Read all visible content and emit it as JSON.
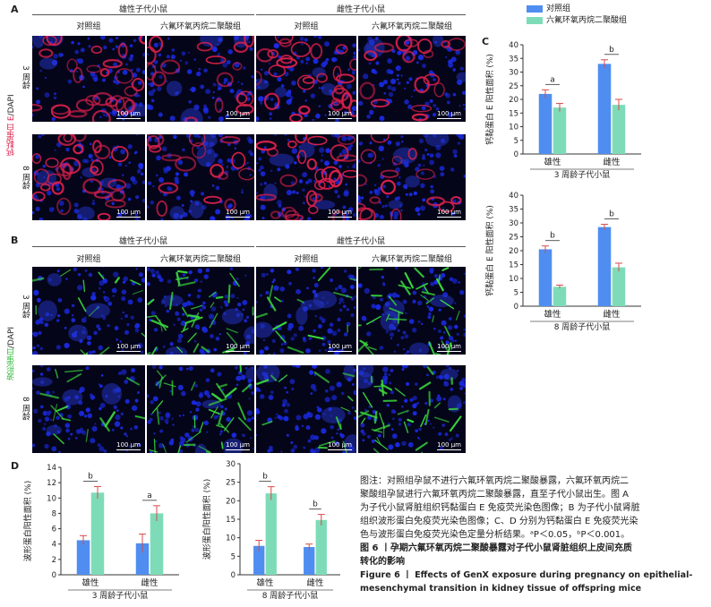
{
  "panels": {
    "A": "A",
    "B": "B",
    "C": "C",
    "D": "D"
  },
  "headers": {
    "male": "雄性子代小鼠",
    "female": "雌性子代小鼠",
    "control": "对照组",
    "genx": "六氟环氧丙烷二聚酸组"
  },
  "rows": {
    "w3": "3 周龄",
    "w8": "8 周龄"
  },
  "row_group_labels": {
    "A_marker": "钙黏蛋白 E",
    "A_dapi": "/DAPI",
    "B_marker": "波形蛋白",
    "B_dapi": "/DAPI"
  },
  "scale_bar": "100 μm",
  "colors": {
    "control": "#4f8ef0",
    "genx": "#7ddcb7",
    "error": "#d94848",
    "red_stain": "#d8204a",
    "green_stain": "#3bdc3c",
    "dapi": "#1a2ae0"
  },
  "legend": {
    "control": "对照组",
    "genx": "六氟环氧丙烷二聚酸组"
  },
  "chart_data": [
    {
      "id": "C-top",
      "type": "bar",
      "ylabel": "钙黏蛋白 E 阳性面积 (%)",
      "xlabel": "3 周龄子代小鼠",
      "categories": [
        "雄性",
        "雌性"
      ],
      "ylim": [
        0,
        40
      ],
      "yticks": [
        0,
        5,
        10,
        15,
        20,
        25,
        30,
        35,
        40
      ],
      "series": [
        {
          "name": "对照组",
          "values": [
            22,
            33
          ],
          "errors": [
            1.5,
            1.5
          ]
        },
        {
          "name": "六氟环氧丙烷二聚酸组",
          "values": [
            17,
            18
          ],
          "errors": [
            1.5,
            2
          ]
        }
      ],
      "annotations": [
        "a",
        "b"
      ]
    },
    {
      "id": "C-bottom",
      "type": "bar",
      "ylabel": "钙黏蛋白 E 阳性面积 (%)",
      "xlabel": "8 周龄子代小鼠",
      "categories": [
        "雄性",
        "雌性"
      ],
      "ylim": [
        0,
        40
      ],
      "yticks": [
        0,
        5,
        10,
        15,
        20,
        25,
        30,
        35,
        40
      ],
      "series": [
        {
          "name": "对照组",
          "values": [
            20.5,
            28.5
          ],
          "errors": [
            1.2,
            1.0
          ]
        },
        {
          "name": "六氟环氧丙烷二聚酸组",
          "values": [
            7,
            14
          ],
          "errors": [
            0.6,
            1.5
          ]
        }
      ],
      "annotations": [
        "b",
        "b"
      ]
    },
    {
      "id": "D-left",
      "type": "bar",
      "ylabel": "波形蛋白阳性面积 (%)",
      "xlabel": "3 周龄子代小鼠",
      "categories": [
        "雄性",
        "雌性"
      ],
      "ylim": [
        0,
        14
      ],
      "yticks": [
        0,
        2,
        4,
        6,
        8,
        10,
        12,
        14
      ],
      "series": [
        {
          "name": "对照组",
          "values": [
            4.5,
            4.1
          ],
          "errors": [
            0.6,
            1.2
          ]
        },
        {
          "name": "六氟环氧丙烷二聚酸组",
          "values": [
            10.7,
            8.0
          ],
          "errors": [
            0.8,
            1.0
          ]
        }
      ],
      "annotations": [
        "b",
        "a"
      ]
    },
    {
      "id": "D-right",
      "type": "bar",
      "ylabel": "波形蛋白阳性面积 (%)",
      "xlabel": "8 周龄子代小鼠",
      "categories": [
        "雄性",
        "雌性"
      ],
      "ylim": [
        0,
        30
      ],
      "yticks": [
        0,
        5,
        10,
        15,
        20,
        25,
        30
      ],
      "series": [
        {
          "name": "对照组",
          "values": [
            7.8,
            7.5
          ],
          "errors": [
            1.5,
            0.8
          ]
        },
        {
          "name": "六氟环氧丙烷二聚酸组",
          "values": [
            22,
            14.8
          ],
          "errors": [
            1.8,
            1.5
          ]
        }
      ],
      "annotations": [
        "b",
        "b"
      ]
    }
  ],
  "caption": {
    "p1": "图注：对照组孕鼠不进行六氟环氧丙烷二聚酸暴露，六氟环氧丙烷二",
    "p2": "聚酸组孕鼠进行六氟环氧丙烷二聚酸暴露，直至子代小鼠出生。图 A",
    "p3": "为子代小鼠肾脏组织钙黏蛋白 E 免疫荧光染色图像；B 为子代小鼠肾脏",
    "p4": "组织波形蛋白免疫荧光染色图像；C、D 分别为钙黏蛋白 E 免疫荧光染",
    "p5": "色与波形蛋白免疫荧光染色定量分析结果。ᵃP＜0.05，ᵇP＜0.001。",
    "title_cn1": "图 6 丨孕期六氟环氧丙烷二聚酸暴露对子代小鼠肾脏组织上皮间充质",
    "title_cn2": "转化的影响",
    "title_en1": "Figure 6 丨 Effects of GenX exposure during pregnancy on epithelial-",
    "title_en2": "mesenchymal transition in kidney tissue of offspring mice"
  }
}
